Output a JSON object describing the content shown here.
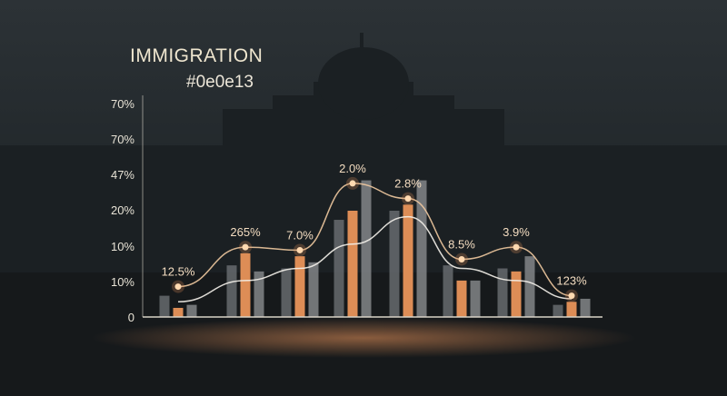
{
  "chart_data": {
    "type": "bar",
    "title": "IMMIGRATION",
    "subtitle": "#0e0e13",
    "y_tick_labels": [
      "0",
      "10%",
      "10%",
      "20%",
      "47%",
      "70%",
      "70%"
    ],
    "point_labels": [
      "12.5%",
      "265%",
      "7.0%",
      "2.0%",
      "2.8%",
      "8.5%",
      "3.9%",
      "123%"
    ],
    "bar_groups": [
      [
        7,
        3,
        4
      ],
      [
        17,
        21,
        15
      ],
      [
        16,
        20,
        18
      ],
      [
        32,
        35,
        45
      ],
      [
        35,
        37,
        45
      ],
      [
        17,
        12,
        12
      ],
      [
        16,
        15,
        20
      ],
      [
        4,
        5,
        6
      ]
    ],
    "series": [
      {
        "values": [
          10,
          23,
          22,
          44,
          39,
          19,
          23,
          7
        ]
      },
      {
        "values": [
          5,
          12,
          16,
          24,
          33,
          16,
          12,
          6
        ]
      }
    ],
    "ylim": [
      0,
      70
    ],
    "grid": false,
    "colors": {
      "accent": "#e8935a",
      "bar_muted": "#6b6f73",
      "bar_light": "#8a8c8f",
      "line_upper": "#f0c9a0",
      "line_lower": "#f4f1ea",
      "axis": "#d9d4c8"
    }
  }
}
